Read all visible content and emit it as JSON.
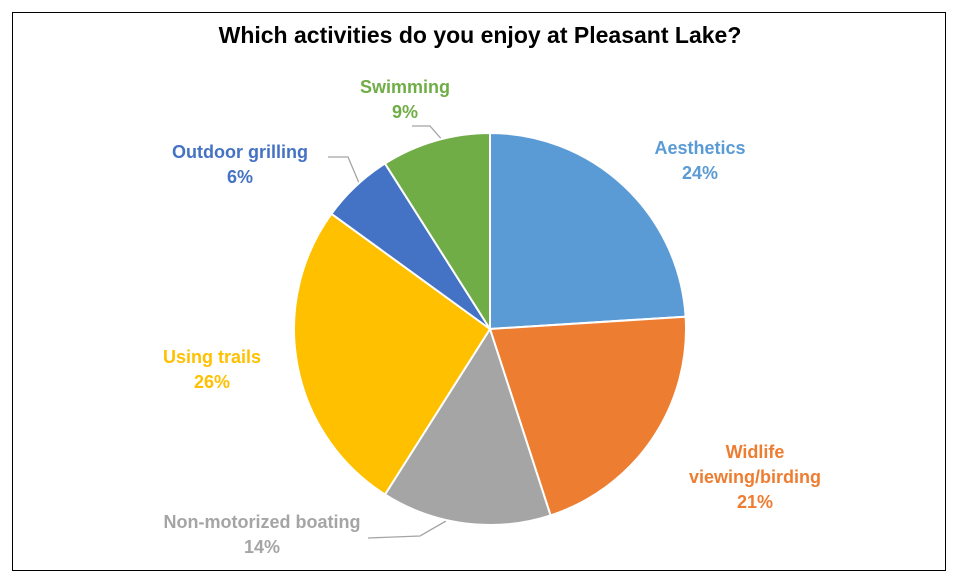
{
  "chart_data": {
    "type": "pie",
    "title": "Which activities do you enjoy at Pleasant Lake?",
    "categories": [
      "Aesthetics",
      "Widlife viewing/birding",
      "Non-motorized boating",
      "Using trails",
      "Outdoor grilling",
      "Swimming"
    ],
    "values": [
      24,
      21,
      14,
      26,
      6,
      9
    ],
    "value_labels": [
      "24%",
      "21%",
      "14%",
      "26%",
      "6%",
      "9%"
    ],
    "colors": [
      "#5b9bd5",
      "#ed7d31",
      "#a5a5a5",
      "#ffc000",
      "#4472c4",
      "#70ad47"
    ]
  }
}
